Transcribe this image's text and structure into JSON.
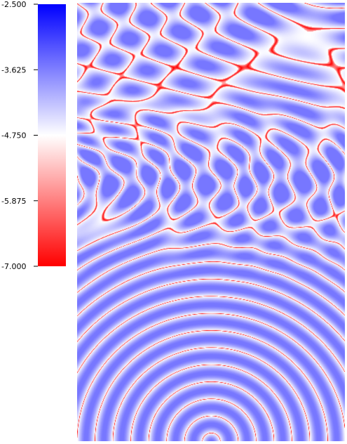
{
  "chart_data": {
    "type": "heatmap",
    "title": "",
    "colorbar": {
      "min": -7.0,
      "max": -2.5,
      "ticks": [
        {
          "value": -2.5,
          "label": "-2.500"
        },
        {
          "value": -3.625,
          "label": "-3.625"
        },
        {
          "value": -4.75,
          "label": "-4.750"
        },
        {
          "value": -5.875,
          "label": "-5.875"
        },
        {
          "value": -7.0,
          "label": "-7.000"
        }
      ],
      "colormap": [
        "#ff0000",
        "#ffffff",
        "#0000ff"
      ],
      "placement": "left"
    },
    "field": {
      "description_of_pattern": "ripple interference field",
      "background_level": -3.9,
      "node_level": -7.0,
      "grid": false
    }
  }
}
